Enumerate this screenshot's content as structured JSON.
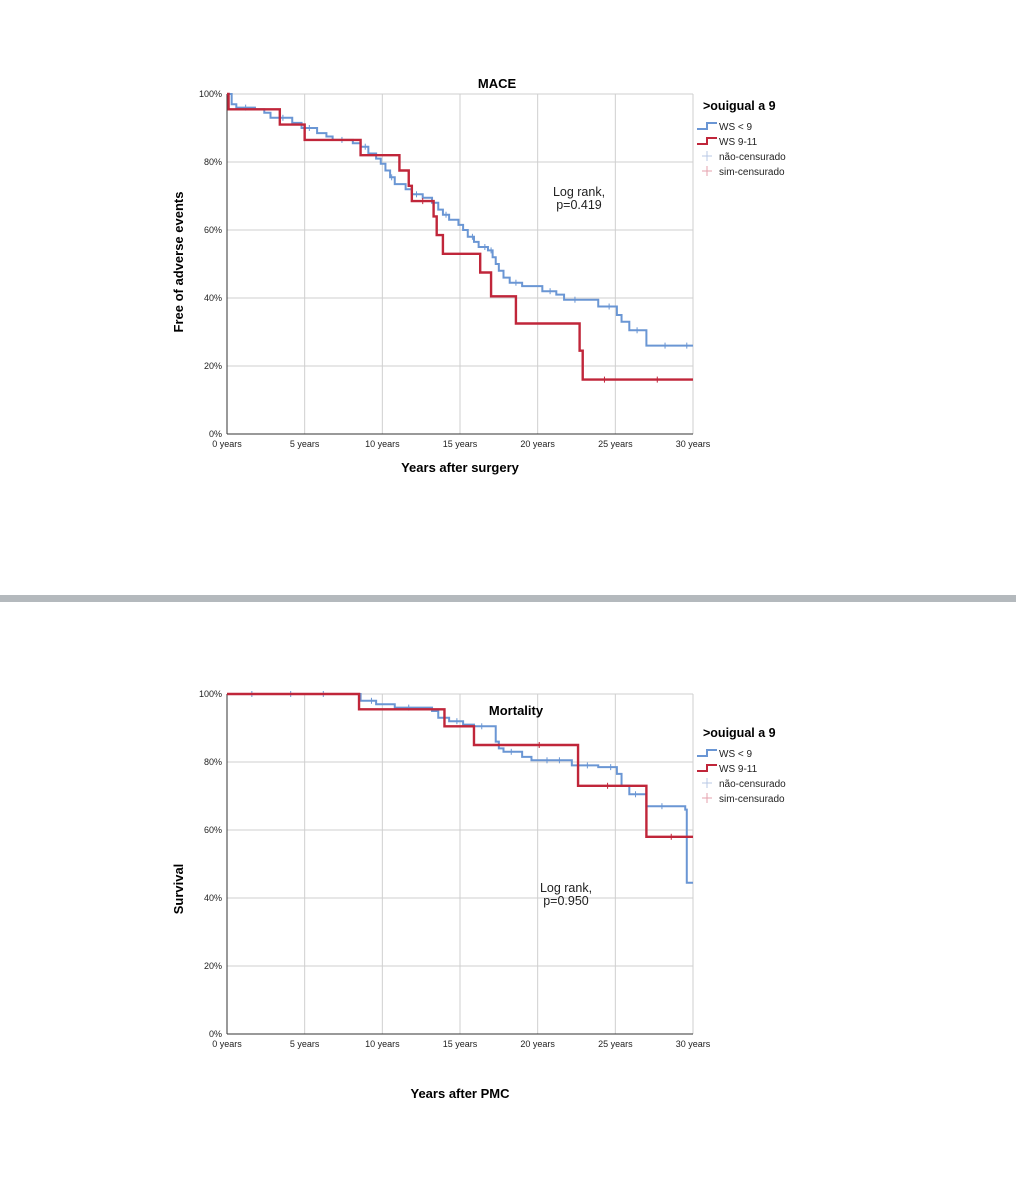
{
  "chart_data": [
    {
      "type": "line",
      "subtype": "kaplan-meier",
      "title": "MACE",
      "xlabel": "Years after surgery",
      "ylabel": "Free of adverse events",
      "xlim": [
        0,
        30
      ],
      "ylim": [
        0,
        100
      ],
      "x_ticks": [
        "0 years",
        "5 years",
        "10 years",
        "15 years",
        "20 years",
        "25 years",
        "30 years"
      ],
      "y_ticks": [
        "0%",
        "20%",
        "40%",
        "60%",
        "80%",
        "100%"
      ],
      "legend_title": ">ouigual a 9",
      "legend_items": [
        "WS < 9",
        "WS 9-11",
        "não-censurado",
        "sim-censurado"
      ],
      "annotation": [
        "Log rank,",
        "p=0.419"
      ],
      "series": [
        {
          "name": "WS < 9",
          "color": "#6a96d4",
          "steps": [
            [
              0,
              100
            ],
            [
              0.3,
              97
            ],
            [
              0.6,
              96
            ],
            [
              1.8,
              95.5
            ],
            [
              2.4,
              94.5
            ],
            [
              2.8,
              93
            ],
            [
              4.2,
              91.5
            ],
            [
              4.8,
              90
            ],
            [
              5.8,
              88.5
            ],
            [
              6.4,
              87.5
            ],
            [
              6.8,
              86.5
            ],
            [
              8.1,
              85.5
            ],
            [
              8.6,
              84.5
            ],
            [
              9.1,
              82.5
            ],
            [
              9.6,
              81
            ],
            [
              9.9,
              79.5
            ],
            [
              10.2,
              77.5
            ],
            [
              10.5,
              75.5
            ],
            [
              10.8,
              73.5
            ],
            [
              11.5,
              72
            ],
            [
              11.9,
              70.5
            ],
            [
              12.6,
              69.5
            ],
            [
              13.2,
              68
            ],
            [
              13.6,
              66
            ],
            [
              13.9,
              64.5
            ],
            [
              14.3,
              63
            ],
            [
              14.9,
              61.5
            ],
            [
              15.2,
              60
            ],
            [
              15.5,
              58
            ],
            [
              15.9,
              56.5
            ],
            [
              16.2,
              55
            ],
            [
              16.8,
              54
            ],
            [
              17.1,
              52
            ],
            [
              17.3,
              50
            ],
            [
              17.5,
              48
            ],
            [
              17.8,
              46
            ],
            [
              18.2,
              44.5
            ],
            [
              19.0,
              43.5
            ],
            [
              20.3,
              42
            ],
            [
              21.2,
              41
            ],
            [
              21.7,
              39.5
            ],
            [
              23.9,
              37.5
            ],
            [
              25.1,
              35
            ],
            [
              25.4,
              33
            ],
            [
              25.9,
              30.5
            ],
            [
              27.0,
              26
            ],
            [
              30.0,
              26
            ]
          ],
          "censored_x": [
            1.2,
            3.6,
            5.3,
            7.4,
            8.9,
            10.6,
            12.2,
            14.1,
            15.8,
            16.6,
            17.0,
            18.6,
            20.8,
            22.4,
            24.6,
            26.4,
            28.2,
            29.6
          ]
        },
        {
          "name": "WS 9-11",
          "color": "#c0263a",
          "steps": [
            [
              0,
              100
            ],
            [
              0.1,
              95.5
            ],
            [
              3.4,
              91
            ],
            [
              5.0,
              86.5
            ],
            [
              8.6,
              82
            ],
            [
              11.1,
              77.5
            ],
            [
              11.7,
              73
            ],
            [
              11.9,
              68.5
            ],
            [
              13.3,
              64
            ],
            [
              13.5,
              58.5
            ],
            [
              13.9,
              53
            ],
            [
              16.3,
              47.5
            ],
            [
              17.0,
              40.5
            ],
            [
              18.6,
              32.5
            ],
            [
              22.7,
              24.5
            ],
            [
              22.9,
              16
            ],
            [
              30.0,
              16
            ]
          ],
          "censored_x": [
            12.6,
            24.3,
            27.7
          ]
        }
      ]
    },
    {
      "type": "line",
      "subtype": "kaplan-meier",
      "title": "Mortality",
      "xlabel": "Years after PMC",
      "ylabel": "Survival",
      "xlim": [
        0,
        30
      ],
      "ylim": [
        0,
        100
      ],
      "x_ticks": [
        "0 years",
        "5 years",
        "10 years",
        "15 years",
        "20 years",
        "25 years",
        "30 years"
      ],
      "y_ticks": [
        "0%",
        "20%",
        "40%",
        "60%",
        "80%",
        "100%"
      ],
      "legend_title": ">ouigual a 9",
      "legend_items": [
        "WS < 9",
        "WS 9-11",
        "não-censurado",
        "sim-censurado"
      ],
      "annotation": [
        "Log rank,",
        "p=0.950"
      ],
      "series": [
        {
          "name": "WS < 9",
          "color": "#6a96d4",
          "steps": [
            [
              0,
              100
            ],
            [
              8.6,
              98
            ],
            [
              9.6,
              97
            ],
            [
              10.8,
              96
            ],
            [
              13.2,
              95
            ],
            [
              13.6,
              93
            ],
            [
              14.3,
              92
            ],
            [
              15.2,
              91
            ],
            [
              15.9,
              90.5
            ],
            [
              17.3,
              86
            ],
            [
              17.5,
              84
            ],
            [
              17.8,
              83
            ],
            [
              19.0,
              81.5
            ],
            [
              19.6,
              80.5
            ],
            [
              22.2,
              79
            ],
            [
              23.9,
              78.5
            ],
            [
              25.1,
              76.5
            ],
            [
              25.4,
              73
            ],
            [
              25.9,
              70.5
            ],
            [
              27.0,
              67
            ],
            [
              29.5,
              66
            ],
            [
              29.6,
              44.5
            ],
            [
              30.0,
              44.5
            ]
          ],
          "censored_x": [
            1.6,
            4.1,
            6.2,
            9.3,
            11.7,
            14.8,
            16.4,
            18.3,
            20.6,
            21.4,
            23.2,
            24.7,
            26.3,
            28.0
          ]
        },
        {
          "name": "WS 9-11",
          "color": "#c0263a",
          "steps": [
            [
              0,
              100
            ],
            [
              8.5,
              95.5
            ],
            [
              14.0,
              90.5
            ],
            [
              15.9,
              85
            ],
            [
              22.6,
              73
            ],
            [
              27.0,
              58
            ],
            [
              30.0,
              58
            ]
          ],
          "censored_x": [
            20.1,
            24.5,
            28.6
          ]
        }
      ]
    }
  ]
}
